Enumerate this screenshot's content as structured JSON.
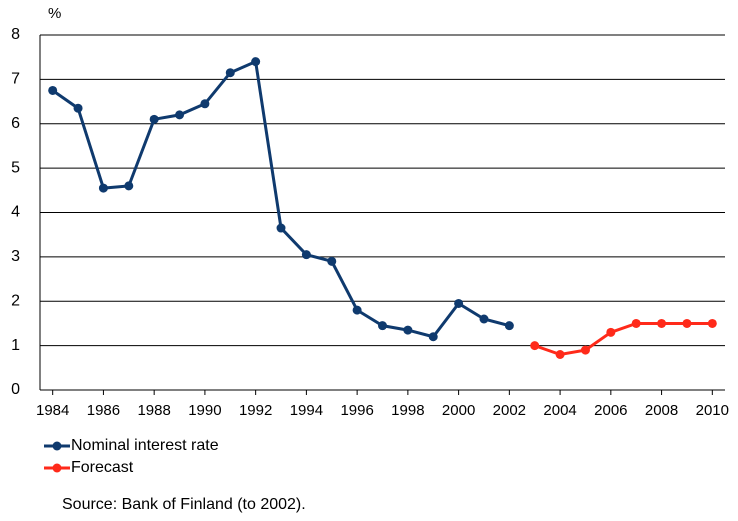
{
  "chart_data": {
    "type": "line",
    "y_label": "%",
    "source": "Source: Bank of Finland (to 2002).",
    "xlim": [
      1983.5,
      2010.5
    ],
    "xticks": [
      1984,
      1986,
      1988,
      1990,
      1992,
      1994,
      1996,
      1998,
      2000,
      2002,
      2004,
      2006,
      2008,
      2010
    ],
    "ylim": [
      0,
      8
    ],
    "yticks": [
      0,
      1,
      2,
      3,
      4,
      5,
      6,
      7,
      8
    ],
    "grid": true,
    "legend": "bottom-left",
    "series": [
      {
        "name": "Nominal interest rate",
        "color": "#0f3a6e",
        "x": [
          1984,
          1985,
          1986,
          1987,
          1988,
          1989,
          1990,
          1991,
          1992,
          1993,
          1994,
          1995,
          1996,
          1997,
          1998,
          1999,
          2000,
          2001,
          2002
        ],
        "values": [
          6.75,
          6.35,
          4.55,
          4.6,
          6.1,
          6.2,
          6.45,
          7.15,
          7.4,
          3.65,
          3.05,
          2.9,
          1.8,
          1.45,
          1.35,
          1.2,
          1.95,
          1.6,
          1.45
        ]
      },
      {
        "name": "Forecast",
        "color": "#ff2a1a",
        "x": [
          2003,
          2004,
          2005,
          2006,
          2007,
          2008,
          2009,
          2010
        ],
        "values": [
          1.0,
          0.8,
          0.9,
          1.3,
          1.5,
          1.5,
          1.5,
          1.5
        ]
      }
    ]
  }
}
